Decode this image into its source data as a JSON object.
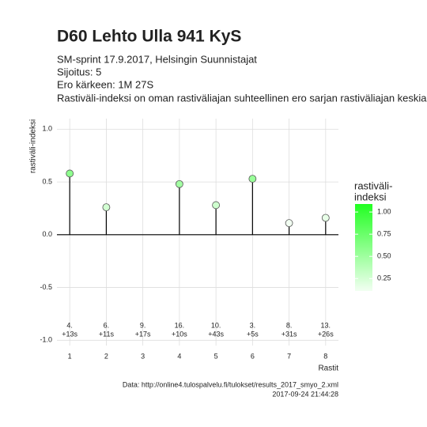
{
  "chart_data": {
    "type": "lollipop",
    "title": "D60 Lehto Ulla 941 KyS",
    "subtitle": [
      "SM-sprint 17.9.2017, Helsingin Suunnistajat",
      "Sijoitus: 5",
      "Ero kärkeen: 1M 27S",
      "Rastiväli-indeksi on oman rastiväliajan suhteellinen ero sarjan rastiväliajan keskiarvoon"
    ],
    "x_label": "Rastit",
    "y_label": "rastiväli-indeksi",
    "x": [
      1,
      2,
      3,
      4,
      5,
      6,
      7,
      8
    ],
    "series": [
      {
        "name": "rastiväli-indeksi",
        "values": [
          0.58,
          0.26,
          null,
          0.48,
          0.28,
          0.53,
          0.11,
          0.16
        ]
      }
    ],
    "annotations": {
      "rank": [
        "4.",
        "6.",
        "9.",
        "16.",
        "10.",
        "3.",
        "8.",
        "13."
      ],
      "time": [
        "+13s",
        "+11s",
        "+17s",
        "+10s",
        "+43s",
        "+5s",
        "+31s",
        "+26s"
      ]
    },
    "xlim": [
      0.65,
      8.35
    ],
    "xticks": [
      1,
      2,
      3,
      4,
      5,
      6,
      7,
      8
    ],
    "ylim": [
      -1.05,
      1.1
    ],
    "yticks": [
      {
        "value": -1,
        "label": "-1.0"
      },
      -0.5,
      {
        "value": 0,
        "label": "0.0"
      },
      0.5,
      {
        "value": 1,
        "label": "1.0"
      }
    ],
    "grid": true,
    "legend": {
      "title": [
        "rastiväli-",
        "indeksi"
      ],
      "lim": [
        0.11,
        1.09
      ],
      "low_color": "#f2fff2",
      "high_color": "#22ff22",
      "ticks": [
        {
          "value": 1,
          "label": "1.00"
        },
        {
          "value": 0.75,
          "label": "0.75"
        },
        {
          "value": 0.5,
          "label": "0.50"
        },
        {
          "value": 0.25,
          "label": "0.25"
        }
      ]
    },
    "caption": [
      "Data: http://online4.tulospalvelu.fi/tulokset/results_2017_smyo_2.xml",
      "2017-09-24 21:44:28"
    ]
  }
}
